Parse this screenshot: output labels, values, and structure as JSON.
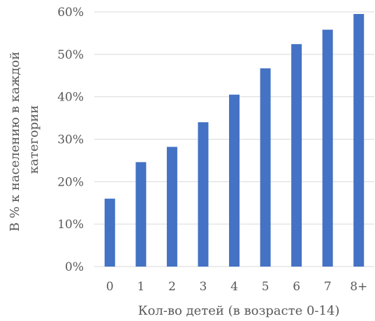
{
  "chart_data": {
    "type": "bar",
    "categories": [
      "0",
      "1",
      "2",
      "3",
      "4",
      "5",
      "6",
      "7",
      "8+"
    ],
    "values": [
      16,
      24.6,
      28.2,
      34,
      40.5,
      46.7,
      52.4,
      55.8,
      59.5
    ],
    "ylim": [
      0,
      60
    ],
    "yticks": [
      "0%",
      "10%",
      "20%",
      "30%",
      "40%",
      "50%",
      "60%"
    ],
    "xlabel": "Кол-во детей (в возрасте 0-14)",
    "ylabel_lines": [
      "В % к населению в каждой",
      "категории"
    ],
    "grid": true,
    "bar_color": "#4472C4",
    "grid_color": "#D9D9D9"
  }
}
